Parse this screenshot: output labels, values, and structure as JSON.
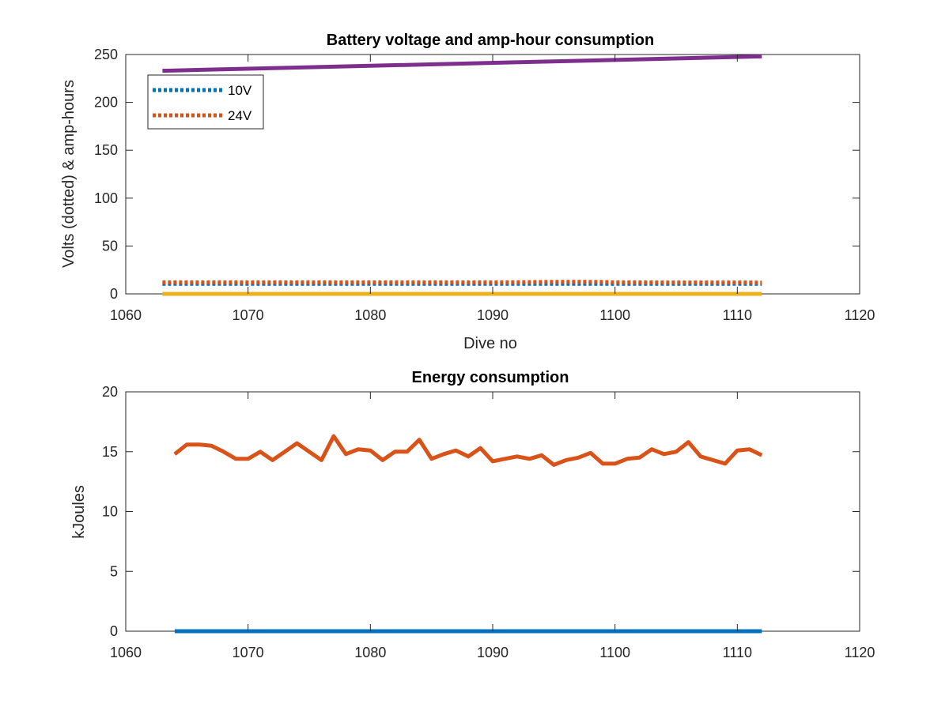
{
  "chart_data": [
    {
      "type": "line",
      "title": "Battery voltage and amp-hour consumption",
      "xlabel": "Dive no",
      "ylabel": "Volts (dotted) & amp-hours",
      "xlim": [
        1060,
        1120
      ],
      "ylim": [
        0,
        250
      ],
      "xticks": [
        1060,
        1070,
        1080,
        1090,
        1100,
        1110,
        1120
      ],
      "yticks": [
        0,
        50,
        100,
        150,
        200,
        250
      ],
      "grid": false,
      "legend": {
        "location": "top-left",
        "entries": [
          "10V",
          "24V"
        ]
      },
      "series": [
        {
          "name": "10V",
          "style": "dotted",
          "color": "#0072BD",
          "x": [
            1063,
            1112
          ],
          "y": [
            10.5,
            10.5
          ]
        },
        {
          "name": "24V",
          "style": "dotted",
          "color": "#D95319",
          "x": [
            1063,
            1070,
            1080,
            1090,
            1096,
            1099,
            1100,
            1105,
            1112
          ],
          "y": [
            12,
            12,
            12,
            12,
            12.6,
            12.5,
            12,
            11.9,
            11.8
          ]
        },
        {
          "style": "solid",
          "color": "#EDB120",
          "x": [
            1063,
            1112
          ],
          "y": [
            0,
            0
          ]
        },
        {
          "style": "solid",
          "color": "#7E2F8E",
          "x": [
            1063,
            1112
          ],
          "y": [
            233,
            248
          ]
        }
      ]
    },
    {
      "type": "line",
      "title": "Energy consumption",
      "xlabel": "",
      "ylabel": "kJoules",
      "xlim": [
        1060,
        1120
      ],
      "ylim": [
        0,
        20
      ],
      "xticks": [
        1060,
        1070,
        1080,
        1090,
        1100,
        1110,
        1120
      ],
      "yticks": [
        0,
        5,
        10,
        15,
        20
      ],
      "grid": false,
      "series": [
        {
          "style": "solid",
          "color": "#0072BD",
          "x": [
            1064,
            1112
          ],
          "y": [
            0,
            0
          ]
        },
        {
          "style": "solid",
          "color": "#D95319",
          "x": [
            1064,
            1065,
            1066,
            1067,
            1068,
            1069,
            1070,
            1071,
            1072,
            1073,
            1074,
            1075,
            1076,
            1077,
            1078,
            1079,
            1080,
            1081,
            1082,
            1083,
            1084,
            1085,
            1086,
            1087,
            1088,
            1089,
            1090,
            1091,
            1092,
            1093,
            1094,
            1095,
            1096,
            1097,
            1098,
            1099,
            1100,
            1101,
            1102,
            1103,
            1104,
            1105,
            1106,
            1107,
            1108,
            1109,
            1110,
            1111,
            1112
          ],
          "y": [
            14.8,
            15.6,
            15.6,
            15.5,
            15.0,
            14.4,
            14.4,
            15.0,
            14.3,
            15.0,
            15.7,
            15.0,
            14.3,
            16.3,
            14.8,
            15.2,
            15.1,
            14.3,
            15.0,
            15.0,
            16.0,
            14.4,
            14.8,
            15.1,
            14.6,
            15.3,
            14.2,
            14.4,
            14.6,
            14.4,
            14.7,
            13.9,
            14.3,
            14.5,
            14.9,
            14.0,
            14.0,
            14.4,
            14.5,
            15.2,
            14.8,
            15.0,
            15.8,
            14.6,
            14.3,
            14.0,
            15.1,
            15.2,
            14.7
          ]
        }
      ]
    }
  ]
}
